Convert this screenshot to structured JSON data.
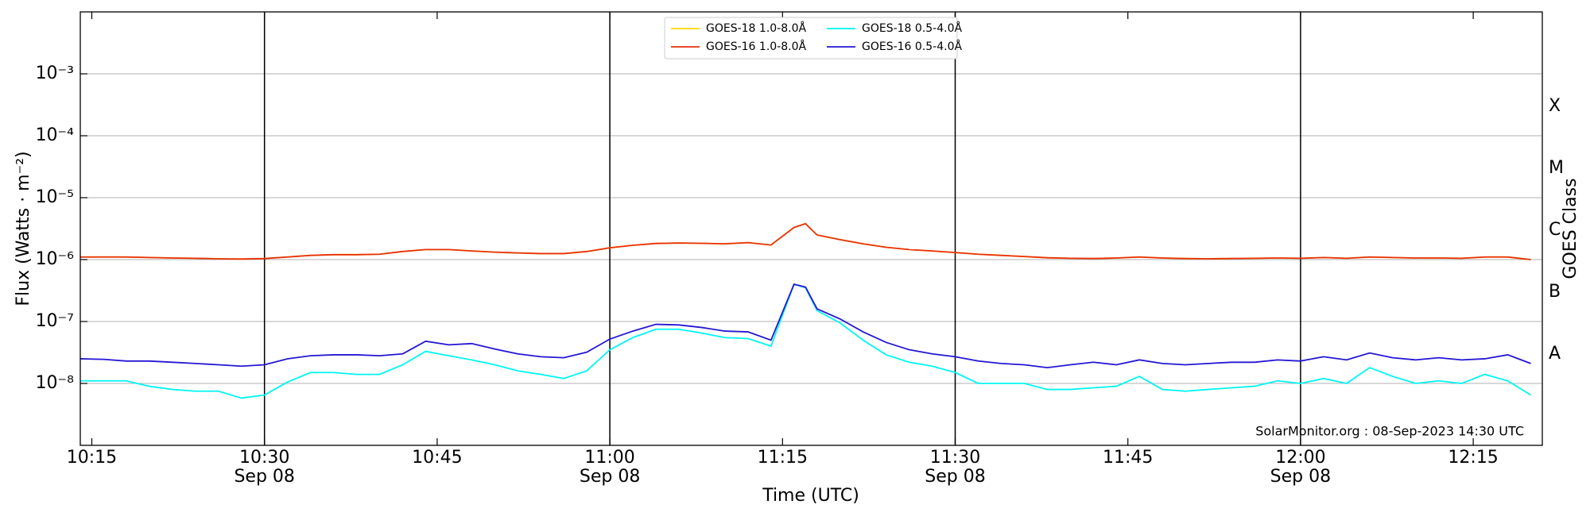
{
  "chart_data": {
    "type": "line",
    "ylabel": "Flux (Watts · m⁻²)",
    "xlabel": "Time (UTC)",
    "y2label": "GOES Class",
    "annotation": "SolarMonitor.org : 08-Sep-2023 14:30 UTC",
    "log_y": true,
    "grid": true,
    "legend": "upper center",
    "xlim": [
      "10:14",
      "12:21"
    ],
    "xticks": [
      "10:15",
      "10:30",
      "10:45",
      "11:00",
      "11:15",
      "11:30",
      "11:45",
      "12:00",
      "12:15"
    ],
    "xtick_dates": [
      null,
      "Sep 08",
      null,
      "Sep 08",
      null,
      "Sep 08",
      null,
      "Sep 08",
      null
    ],
    "ylim": [
      1e-09,
      0.01
    ],
    "yticks": [
      {
        "value": 1e-08,
        "label": "10⁻⁸"
      },
      {
        "value": 1e-07,
        "label": "10⁻⁷"
      },
      {
        "value": 1e-06,
        "label": "10⁻⁶"
      },
      {
        "value": 1e-05,
        "label": "10⁻⁵"
      },
      {
        "value": 0.0001,
        "label": "10⁻⁴"
      },
      {
        "value": 0.001,
        "label": "10⁻³"
      }
    ],
    "y2ticks": [
      {
        "value": 3e-08,
        "label": "A"
      },
      {
        "value": 3e-07,
        "label": "B"
      },
      {
        "value": 3e-06,
        "label": "C"
      },
      {
        "value": 3e-05,
        "label": "M"
      },
      {
        "value": 0.0003,
        "label": "X"
      }
    ],
    "x": [
      "10:14",
      "10:16",
      "10:18",
      "10:20",
      "10:22",
      "10:24",
      "10:26",
      "10:28",
      "10:30",
      "10:32",
      "10:34",
      "10:36",
      "10:38",
      "10:40",
      "10:42",
      "10:44",
      "10:46",
      "10:48",
      "10:50",
      "10:52",
      "10:54",
      "10:56",
      "10:58",
      "11:00",
      "11:02",
      "11:04",
      "11:06",
      "11:08",
      "11:10",
      "11:12",
      "11:14",
      "11:16",
      "11:17",
      "11:18",
      "11:20",
      "11:22",
      "11:24",
      "11:26",
      "11:28",
      "11:30",
      "11:32",
      "11:34",
      "11:36",
      "11:38",
      "11:40",
      "11:42",
      "11:44",
      "11:46",
      "11:48",
      "11:50",
      "11:52",
      "11:54",
      "11:56",
      "11:58",
      "12:00",
      "12:02",
      "12:04",
      "12:06",
      "12:08",
      "12:10",
      "12:12",
      "12:14",
      "12:16",
      "12:18",
      "12:20"
    ],
    "series": [
      {
        "name": "GOES-18 1.0-8.0Å",
        "color": "#ffd700",
        "values": [
          1.1e-06,
          1.1e-06,
          1.1e-06,
          1.08e-06,
          1.06e-06,
          1.05e-06,
          1.03e-06,
          1.02e-06,
          1.04e-06,
          1.1e-06,
          1.17e-06,
          1.2e-06,
          1.2e-06,
          1.22e-06,
          1.35e-06,
          1.45e-06,
          1.45e-06,
          1.38e-06,
          1.32e-06,
          1.28e-06,
          1.25e-06,
          1.25e-06,
          1.35e-06,
          1.55e-06,
          1.7e-06,
          1.82e-06,
          1.85e-06,
          1.83e-06,
          1.8e-06,
          1.88e-06,
          1.72e-06,
          3.3e-06,
          3.8e-06,
          2.5e-06,
          2.1e-06,
          1.8e-06,
          1.58e-06,
          1.45e-06,
          1.38e-06,
          1.3e-06,
          1.22e-06,
          1.17e-06,
          1.12e-06,
          1.07e-06,
          1.05e-06,
          1.04e-06,
          1.06e-06,
          1.1e-06,
          1.06e-06,
          1.04e-06,
          1.03e-06,
          1.04e-06,
          1.05e-06,
          1.06e-06,
          1.05e-06,
          1.08e-06,
          1.05e-06,
          1.1e-06,
          1.08e-06,
          1.06e-06,
          1.06e-06,
          1.05e-06,
          1.1e-06,
          1.1e-06,
          1e-06
        ]
      },
      {
        "name": "GOES-16 1.0-8.0Å",
        "color": "#e8300c",
        "values": [
          1.1e-06,
          1.1e-06,
          1.1e-06,
          1.08e-06,
          1.06e-06,
          1.05e-06,
          1.03e-06,
          1.02e-06,
          1.04e-06,
          1.1e-06,
          1.17e-06,
          1.2e-06,
          1.2e-06,
          1.22e-06,
          1.35e-06,
          1.45e-06,
          1.45e-06,
          1.38e-06,
          1.32e-06,
          1.28e-06,
          1.25e-06,
          1.25e-06,
          1.35e-06,
          1.55e-06,
          1.7e-06,
          1.82e-06,
          1.85e-06,
          1.83e-06,
          1.8e-06,
          1.88e-06,
          1.72e-06,
          3.3e-06,
          3.8e-06,
          2.5e-06,
          2.1e-06,
          1.8e-06,
          1.58e-06,
          1.45e-06,
          1.38e-06,
          1.3e-06,
          1.22e-06,
          1.17e-06,
          1.12e-06,
          1.07e-06,
          1.05e-06,
          1.04e-06,
          1.06e-06,
          1.1e-06,
          1.06e-06,
          1.04e-06,
          1.03e-06,
          1.04e-06,
          1.05e-06,
          1.06e-06,
          1.05e-06,
          1.08e-06,
          1.05e-06,
          1.1e-06,
          1.08e-06,
          1.06e-06,
          1.06e-06,
          1.05e-06,
          1.1e-06,
          1.1e-06,
          1e-06
        ]
      },
      {
        "name": "GOES-18 0.5-4.0Å",
        "color": "#00f5f5",
        "values": [
          1.1e-08,
          1.1e-08,
          1.1e-08,
          9e-09,
          8e-09,
          7.5e-09,
          7.5e-09,
          5.8e-09,
          6.5e-09,
          1.05e-08,
          1.5e-08,
          1.5e-08,
          1.4e-08,
          1.4e-08,
          2e-08,
          3.3e-08,
          2.8e-08,
          2.4e-08,
          2e-08,
          1.6e-08,
          1.4e-08,
          1.2e-08,
          1.6e-08,
          3.5e-08,
          5.5e-08,
          7.5e-08,
          7.5e-08,
          6.5e-08,
          5.5e-08,
          5.3e-08,
          4e-08,
          4e-07,
          3.5e-07,
          1.5e-07,
          9.5e-08,
          5e-08,
          2.9e-08,
          2.2e-08,
          1.9e-08,
          1.5e-08,
          1e-08,
          1e-08,
          1e-08,
          8e-09,
          8e-09,
          8.5e-09,
          9e-09,
          1.3e-08,
          8e-09,
          7.5e-09,
          8e-09,
          8.5e-09,
          9e-09,
          1.1e-08,
          1e-08,
          1.2e-08,
          1e-08,
          1.8e-08,
          1.3e-08,
          1e-08,
          1.1e-08,
          1e-08,
          1.4e-08,
          1.1e-08,
          6.5e-09
        ]
      },
      {
        "name": "GOES-16 0.5-4.0Å",
        "color": "#2417d4",
        "values": [
          2.5e-08,
          2.45e-08,
          2.3e-08,
          2.3e-08,
          2.2e-08,
          2.1e-08,
          2e-08,
          1.9e-08,
          2e-08,
          2.5e-08,
          2.8e-08,
          2.9e-08,
          2.9e-08,
          2.8e-08,
          3e-08,
          4.8e-08,
          4.2e-08,
          4.4e-08,
          3.6e-08,
          3e-08,
          2.7e-08,
          2.6e-08,
          3.2e-08,
          5.2e-08,
          7e-08,
          9e-08,
          8.8e-08,
          8e-08,
          7e-08,
          6.8e-08,
          5e-08,
          4e-07,
          3.6e-07,
          1.6e-07,
          1.1e-07,
          6.8e-08,
          4.6e-08,
          3.5e-08,
          3e-08,
          2.7e-08,
          2.3e-08,
          2.1e-08,
          2e-08,
          1.8e-08,
          2e-08,
          2.2e-08,
          2e-08,
          2.4e-08,
          2.1e-08,
          2e-08,
          2.1e-08,
          2.2e-08,
          2.2e-08,
          2.4e-08,
          2.3e-08,
          2.7e-08,
          2.4e-08,
          3.1e-08,
          2.6e-08,
          2.4e-08,
          2.6e-08,
          2.4e-08,
          2.5e-08,
          2.9e-08,
          2.1e-08
        ]
      }
    ]
  }
}
